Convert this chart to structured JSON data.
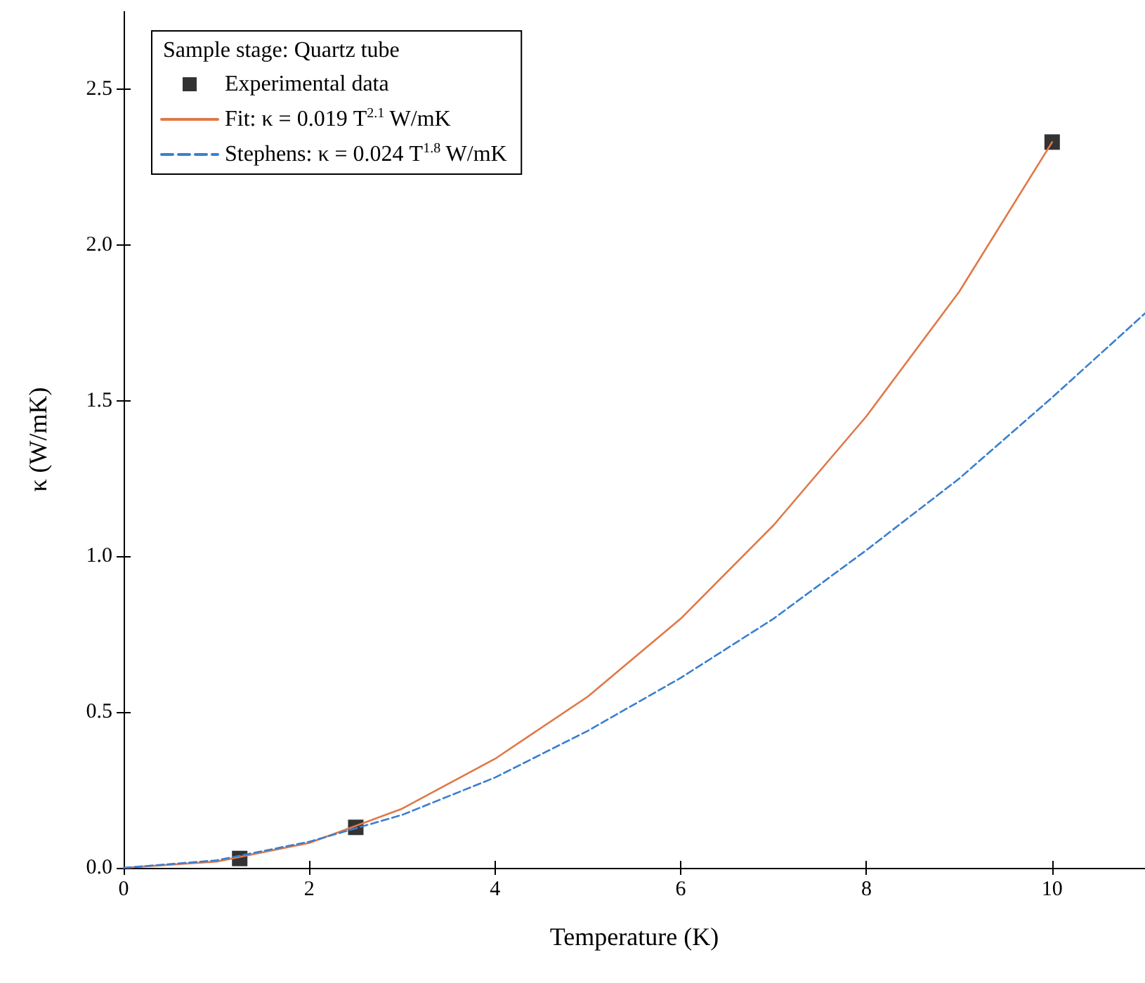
{
  "chart_data": {
    "type": "line",
    "xlabel": "Temperature (K)",
    "ylabel": "κ (W/mK)",
    "legend_title": "Sample stage: Quartz tube",
    "legend": "top left",
    "grid": false,
    "xlim": [
      0,
      11
    ],
    "ylim": [
      0,
      2.75
    ],
    "xticks": [
      0,
      2,
      4,
      6,
      8,
      10
    ],
    "yticks": [
      {
        "value": 0,
        "label": "0.0"
      },
      {
        "value": 0.5,
        "label": "0.5"
      },
      {
        "value": 1,
        "label": "1.0"
      },
      {
        "value": 1.5,
        "label": "1.5"
      },
      {
        "value": 2,
        "label": "2.0"
      },
      {
        "value": 2.5,
        "label": "2.5"
      }
    ],
    "series": [
      {
        "name": "Experimental data",
        "type": "scatter",
        "marker": "square",
        "color": "#000000",
        "x": [
          1.25,
          2.5,
          10
        ],
        "values": [
          0.03,
          0.13,
          2.33
        ]
      },
      {
        "name": "Fit: κ = 0.019 T$^{2.1}$ W/mK",
        "marker": "none",
        "line_style": "solid",
        "color": "#e07848",
        "x": [
          0,
          1,
          2,
          3,
          4,
          5,
          6,
          7,
          8,
          9,
          10
        ],
        "values": [
          0,
          0.02,
          0.08,
          0.19,
          0.35,
          0.55,
          0.8,
          1.1,
          1.45,
          1.85,
          2.33
        ]
      },
      {
        "name": "Stephens: κ = 0.024 T$^{1.8}$ W/mK",
        "marker": "none",
        "line_style": "dashed",
        "color": "#3a7fd0",
        "x": [
          0,
          1,
          2,
          3,
          4,
          5,
          6,
          7,
          8,
          9,
          10,
          11
        ],
        "values": [
          0,
          0.024,
          0.084,
          0.17,
          0.29,
          0.44,
          0.61,
          0.8,
          1.02,
          1.25,
          1.51,
          1.78
        ]
      }
    ]
  }
}
